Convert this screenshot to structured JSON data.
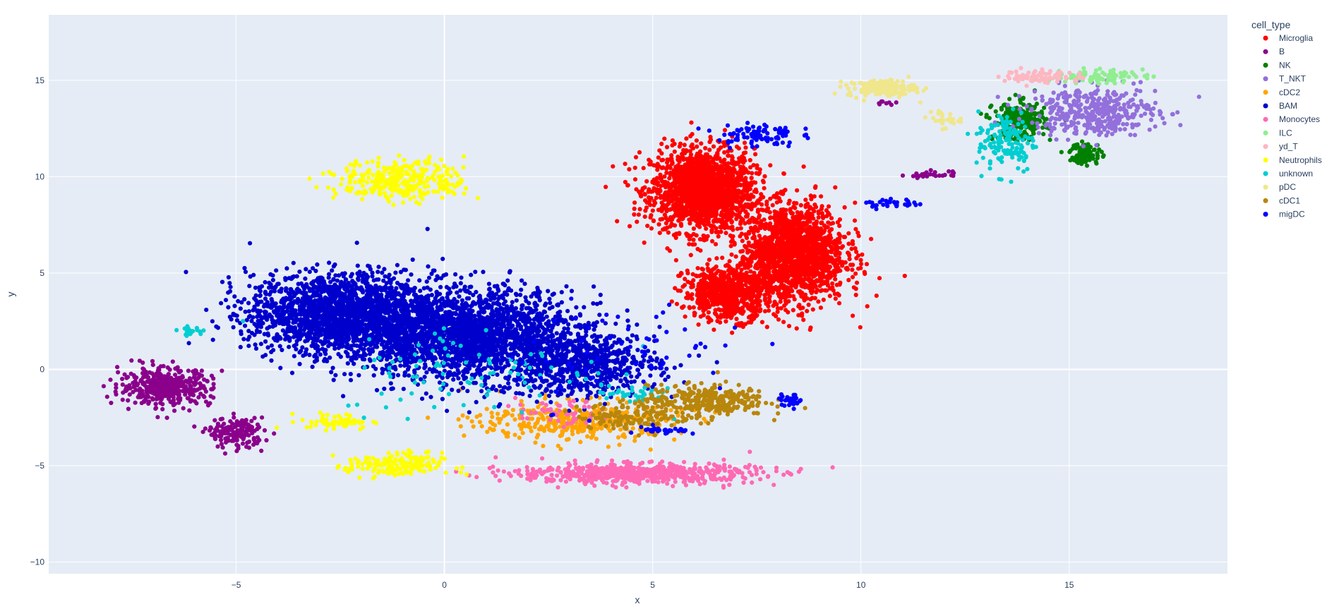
{
  "chart_data": {
    "type": "scatter",
    "xlabel": "x",
    "ylabel": "y",
    "xlim": [
      -9.5,
      18.8
    ],
    "ylim": [
      -10.6,
      18.4
    ],
    "x_ticks": [
      -5,
      0,
      5,
      10,
      15
    ],
    "y_ticks": [
      -10,
      -5,
      0,
      5,
      10,
      15
    ],
    "grid": true,
    "legend_title": "cell_type",
    "legend_position": "right",
    "series": [
      {
        "name": "Microglia",
        "color": "#FF0000",
        "clusters": [
          {
            "cx": 6.2,
            "cy": 9.3,
            "sx": 2.6,
            "sy": 4.5,
            "n": 1700
          },
          {
            "cx": 8.4,
            "cy": 6.0,
            "sx": 2.6,
            "sy": 5.3,
            "n": 1700
          },
          {
            "cx": 6.8,
            "cy": 4.0,
            "sx": 2.2,
            "sy": 3.0,
            "n": 700
          }
        ]
      },
      {
        "name": "B",
        "color": "#8B008B",
        "clusters": [
          {
            "cx": -6.7,
            "cy": -0.9,
            "sx": 2.3,
            "sy": 2.0,
            "n": 420
          },
          {
            "cx": -5.0,
            "cy": -3.3,
            "sx": 1.4,
            "sy": 1.6,
            "n": 170
          },
          {
            "cx": 11.7,
            "cy": 10.1,
            "sx": 1.3,
            "sy": 0.4,
            "n": 25
          },
          {
            "cx": 10.6,
            "cy": 13.8,
            "sx": 1.0,
            "sy": 0.2,
            "n": 8
          }
        ]
      },
      {
        "name": "NK",
        "color": "#008000",
        "clusters": [
          {
            "cx": 13.8,
            "cy": 12.9,
            "sx": 1.3,
            "sy": 2.0,
            "n": 260
          },
          {
            "cx": 15.4,
            "cy": 11.2,
            "sx": 0.8,
            "sy": 1.2,
            "n": 90
          }
        ]
      },
      {
        "name": "T_NKT",
        "color": "#9370DB",
        "clusters": [
          {
            "cx": 15.6,
            "cy": 13.4,
            "sx": 3.2,
            "sy": 2.6,
            "n": 420
          }
        ]
      },
      {
        "name": "cDC2",
        "color": "#FFA500",
        "clusters": [
          {
            "cx": 3.2,
            "cy": -2.7,
            "sx": 5.0,
            "sy": 2.2,
            "n": 380
          }
        ]
      },
      {
        "name": "BAM",
        "color": "#0000CD",
        "clusters": [
          {
            "cx": -2.5,
            "cy": 2.9,
            "sx": 4.6,
            "sy": 4.3,
            "n": 1900
          },
          {
            "cx": 0.5,
            "cy": 1.8,
            "sx": 5.5,
            "sy": 5.0,
            "n": 2200
          },
          {
            "cx": 3.3,
            "cy": 0.3,
            "sx": 3.8,
            "sy": 3.5,
            "n": 700
          }
        ]
      },
      {
        "name": "Monocytes",
        "color": "#FF69B4",
        "clusters": [
          {
            "cx": 4.6,
            "cy": -5.4,
            "sx": 6.0,
            "sy": 1.1,
            "n": 650
          },
          {
            "cx": 2.8,
            "cy": -2.3,
            "sx": 2.2,
            "sy": 1.5,
            "n": 50
          }
        ]
      },
      {
        "name": "ILC",
        "color": "#90EE90",
        "clusters": [
          {
            "cx": 15.5,
            "cy": 15.2,
            "sx": 2.6,
            "sy": 0.7,
            "n": 90
          }
        ]
      },
      {
        "name": "yd_T",
        "color": "#FFB6C1",
        "clusters": [
          {
            "cx": 14.4,
            "cy": 15.2,
            "sx": 2.0,
            "sy": 0.8,
            "n": 70
          }
        ]
      },
      {
        "name": "Neutrophils",
        "color": "#FFFF00",
        "clusters": [
          {
            "cx": -1.0,
            "cy": 9.8,
            "sx": 3.2,
            "sy": 2.2,
            "n": 330
          },
          {
            "cx": -1.2,
            "cy": -5.0,
            "sx": 2.4,
            "sy": 1.4,
            "n": 180
          },
          {
            "cx": -2.6,
            "cy": -2.7,
            "sx": 1.8,
            "sy": 0.9,
            "n": 60
          }
        ]
      },
      {
        "name": "unknown",
        "color": "#00CED1",
        "clusters": [
          {
            "cx": 13.5,
            "cy": 11.8,
            "sx": 1.5,
            "sy": 3.4,
            "n": 140
          },
          {
            "cx": 0.8,
            "cy": 0.0,
            "sx": 7.0,
            "sy": 5.0,
            "n": 90
          },
          {
            "cx": -6.1,
            "cy": 2.0,
            "sx": 0.6,
            "sy": 0.4,
            "n": 25
          },
          {
            "cx": 4.5,
            "cy": -1.3,
            "sx": 2.2,
            "sy": 1.0,
            "n": 40
          }
        ]
      },
      {
        "name": "pDC",
        "color": "#F0E68C",
        "clusters": [
          {
            "cx": 10.5,
            "cy": 14.6,
            "sx": 1.7,
            "sy": 0.9,
            "n": 160
          },
          {
            "cx": 11.9,
            "cy": 13.0,
            "sx": 1.0,
            "sy": 1.0,
            "n": 25
          }
        ]
      },
      {
        "name": "cDC1",
        "color": "#B8860B",
        "clusters": [
          {
            "cx": 6.3,
            "cy": -1.6,
            "sx": 3.0,
            "sy": 1.7,
            "n": 300
          },
          {
            "cx": 4.6,
            "cy": -2.4,
            "sx": 3.0,
            "sy": 1.4,
            "n": 140
          }
        ]
      },
      {
        "name": "migDC",
        "color": "#0000FF",
        "clusters": [
          {
            "cx": 7.5,
            "cy": 12.2,
            "sx": 2.0,
            "sy": 1.4,
            "n": 90
          },
          {
            "cx": 10.8,
            "cy": 8.6,
            "sx": 1.6,
            "sy": 0.5,
            "n": 30
          },
          {
            "cx": 8.3,
            "cy": -1.6,
            "sx": 0.6,
            "sy": 0.6,
            "n": 30
          },
          {
            "cx": 5.3,
            "cy": -3.2,
            "sx": 1.2,
            "sy": 0.4,
            "n": 30
          },
          {
            "cx": 4.5,
            "cy": 1.0,
            "sx": 6.0,
            "sy": 6.0,
            "n": 60
          }
        ]
      }
    ]
  }
}
